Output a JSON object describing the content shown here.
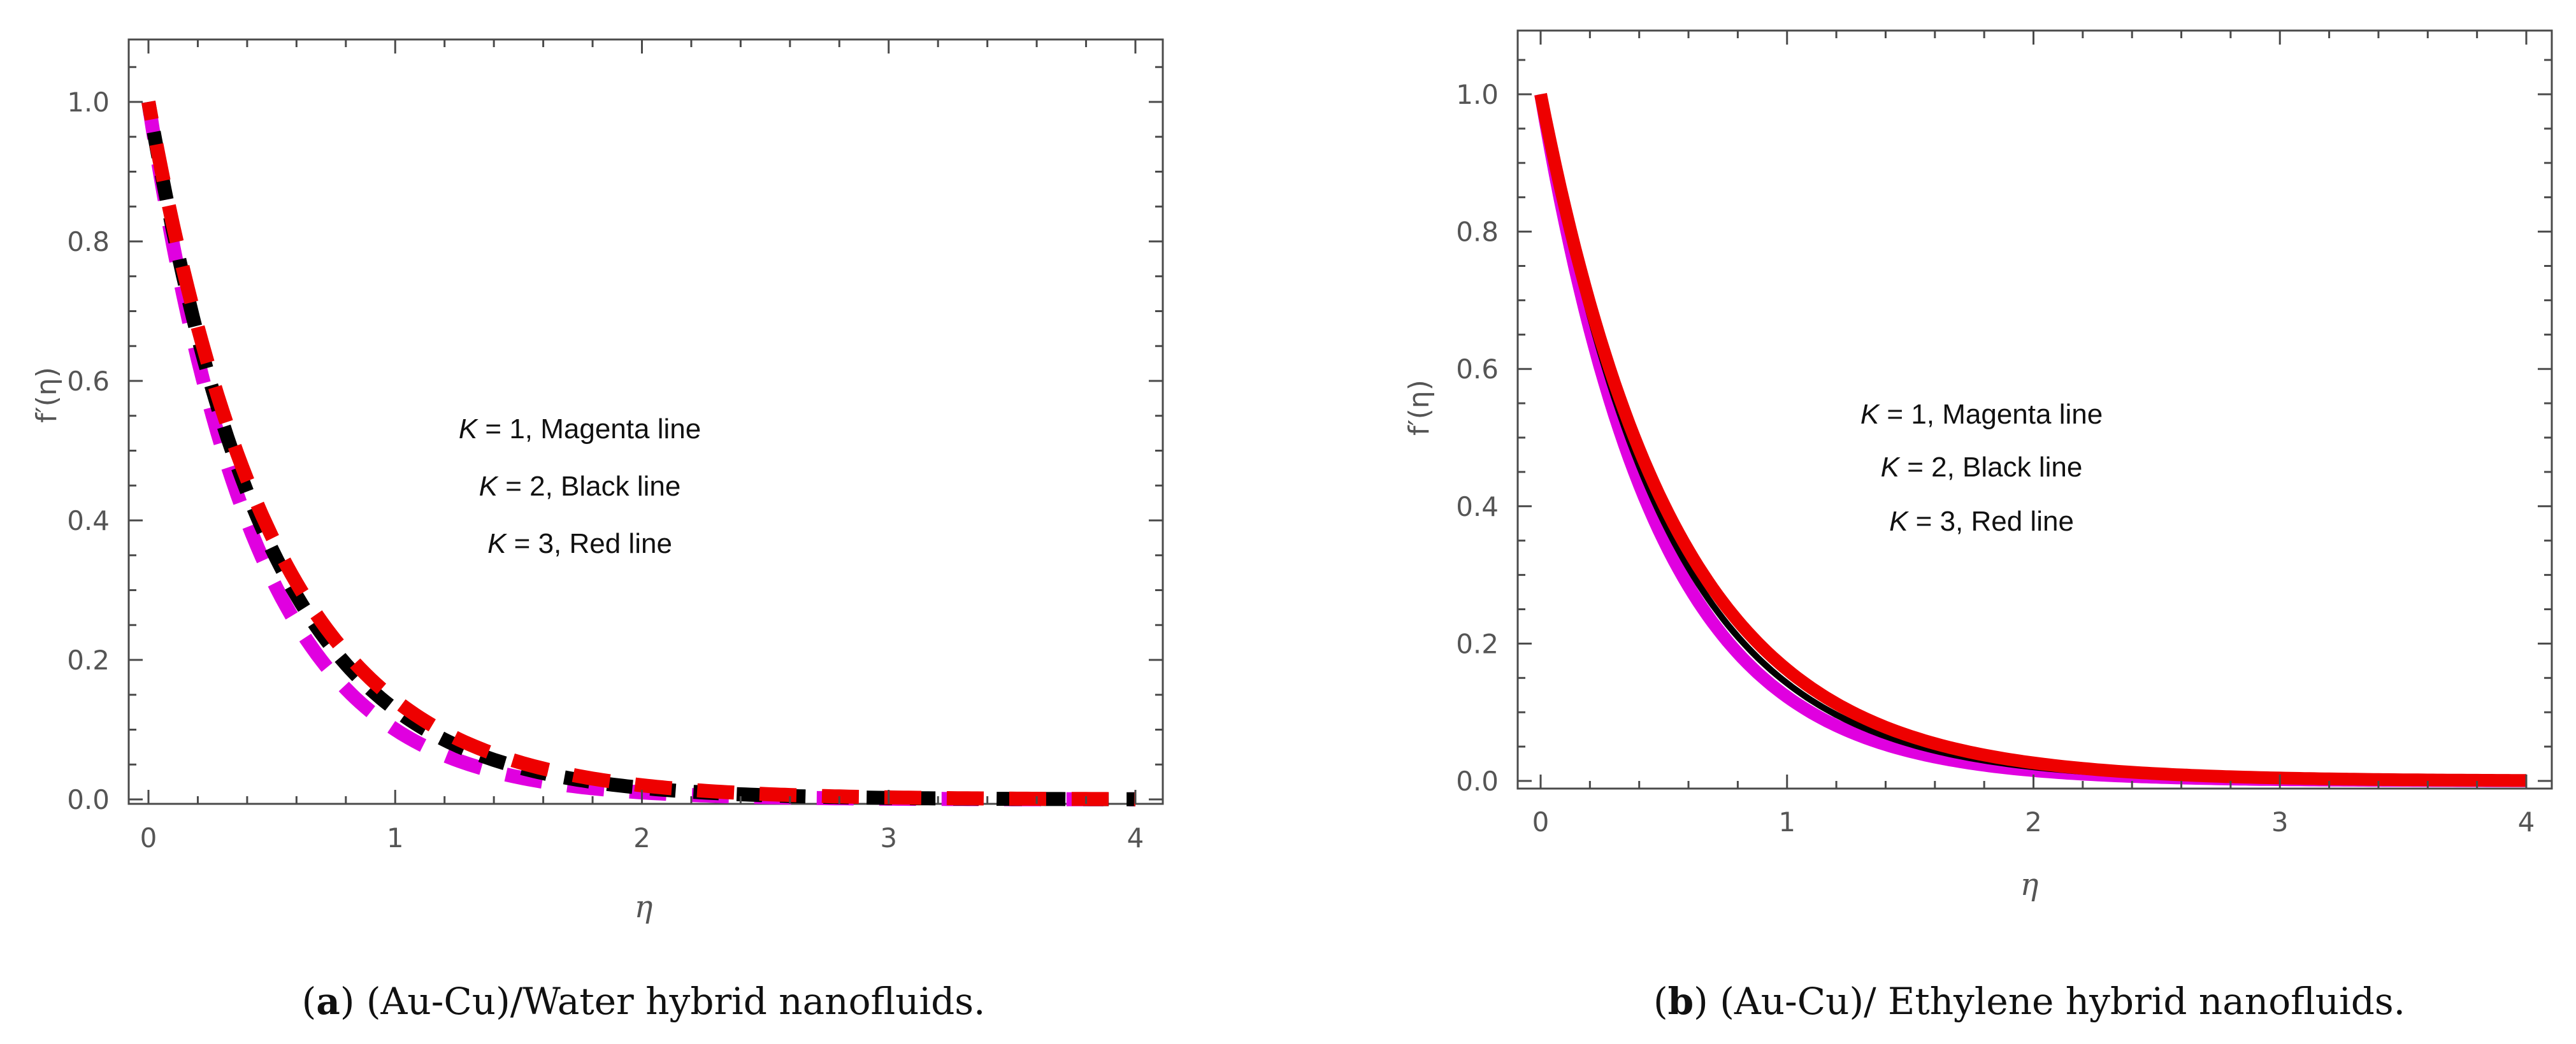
{
  "chart_data": [
    {
      "type": "line",
      "panel_label": "a",
      "caption": "(Au-Cu)/Water hybrid nanofluids.",
      "xlabel": "η",
      "ylabel": "f′(η)",
      "xlim": [
        0,
        4
      ],
      "ylim": [
        0,
        1.1
      ],
      "xticks": [
        0,
        1,
        2,
        3,
        4
      ],
      "yticks": [
        "0.0",
        "0.2",
        "0.4",
        "0.6",
        "0.8",
        "1.0"
      ],
      "line_style": "dashed",
      "annotations": [
        {
          "var": "K",
          "text": " = 1, Magenta  line"
        },
        {
          "var": "K",
          "text": " = 2, Black line"
        },
        {
          "var": "K",
          "text": " = 3, Red line"
        }
      ],
      "series": [
        {
          "name": "K = 1",
          "color": "#e000e0",
          "decay_rate": 2.3
        },
        {
          "name": "K = 2",
          "color": "#000000",
          "decay_rate": 2.05
        },
        {
          "name": "K = 3",
          "color": "#ee0000",
          "decay_rate": 1.95
        }
      ]
    },
    {
      "type": "line",
      "panel_label": "b",
      "caption": "(Au-Cu)/ Ethylene hybrid nanofluids.",
      "xlabel": "η",
      "ylabel": "f′(η)",
      "xlim": [
        0,
        4
      ],
      "ylim": [
        0,
        1.1
      ],
      "xticks": [
        0,
        1,
        2,
        3,
        4
      ],
      "yticks": [
        "0.0",
        "0.2",
        "0.4",
        "0.6",
        "0.8",
        "1.0"
      ],
      "line_style": "solid",
      "annotations": [
        {
          "var": "K",
          "text": " = 1, Magenta  line"
        },
        {
          "var": "K",
          "text": " = 2, Black line"
        },
        {
          "var": "K",
          "text": " = 3, Red line"
        }
      ],
      "series": [
        {
          "name": "K = 1",
          "color": "#e000e0",
          "decay_rate": 2.1
        },
        {
          "name": "K = 2",
          "color": "#000000",
          "decay_rate": 1.95
        },
        {
          "name": "K = 3",
          "color": "#ee0000",
          "decay_rate": 1.82
        }
      ]
    }
  ]
}
